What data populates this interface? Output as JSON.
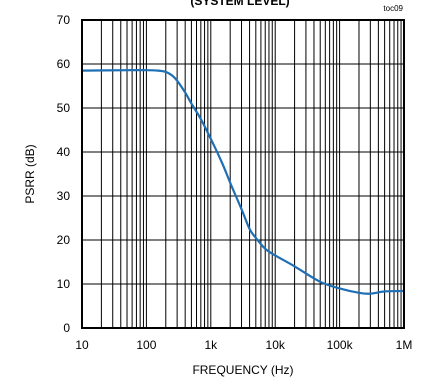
{
  "chart_data": {
    "type": "line",
    "title": "(SYSTEM LEVEL)",
    "figure_tag": "toc09",
    "xlabel": "FREQUENCY (Hz)",
    "ylabel": "PSRR (dB)",
    "x_scale": "log",
    "xlim": [
      10,
      1000000
    ],
    "ylim": [
      0,
      70
    ],
    "grid": true,
    "x_ticks": [
      {
        "value": 10,
        "label": "10"
      },
      {
        "value": 100,
        "label": "100"
      },
      {
        "value": 1000,
        "label": "1k"
      },
      {
        "value": 10000,
        "label": "10k"
      },
      {
        "value": 100000,
        "label": "100k"
      },
      {
        "value": 1000000,
        "label": "1M"
      }
    ],
    "y_ticks": [
      0,
      10,
      20,
      30,
      40,
      50,
      60,
      70
    ],
    "line_color": "#1f6fb5",
    "series": [
      {
        "x": [
          10,
          50,
          100,
          150,
          200,
          250,
          300,
          400,
          500,
          700,
          1000,
          1500,
          2000,
          3000,
          4000,
          5000,
          7000,
          10000,
          20000,
          50000,
          100000,
          200000,
          300000,
          500000,
          1000000
        ],
        "y": [
          58.5,
          58.6,
          58.6,
          58.5,
          58.2,
          57.4,
          56.2,
          53.5,
          51,
          47.5,
          43,
          37.5,
          33,
          27,
          22.5,
          20.5,
          18,
          16.5,
          14,
          10.5,
          9,
          8,
          7.8,
          8.3,
          8.4
        ]
      }
    ]
  }
}
